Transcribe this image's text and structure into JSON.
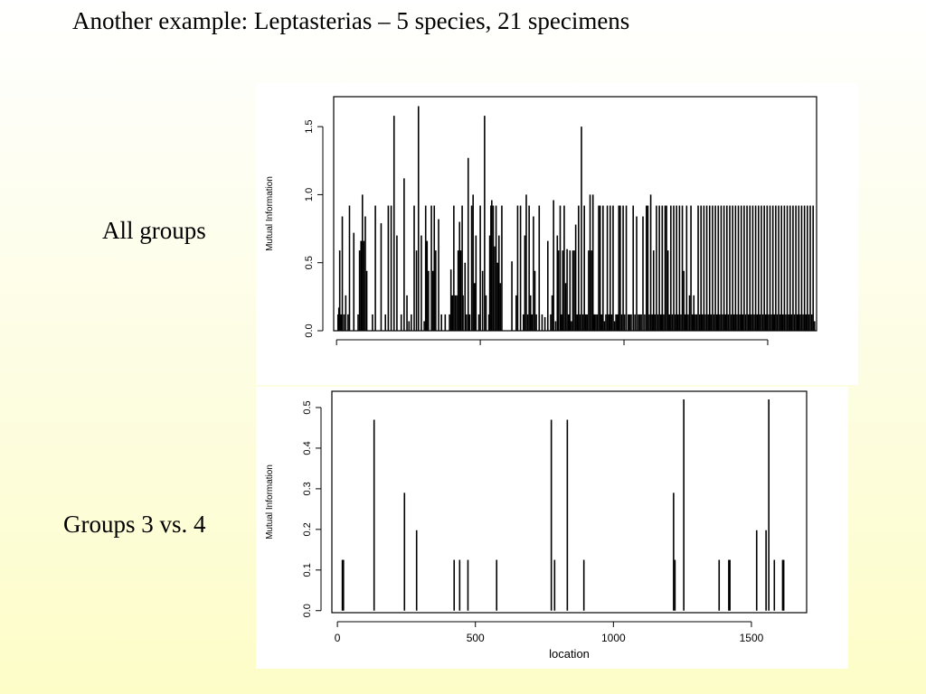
{
  "slide": {
    "title": "Another example: Leptasterias – 5 species, 21 specimens",
    "labels": {
      "all_groups": "All groups",
      "groups_3_vs_4": "Groups 3 vs. 4"
    }
  },
  "chart_data": [
    {
      "type": "bar",
      "subtype": "vertical-lines",
      "title": "",
      "xlabel": "",
      "ylabel": "Mutual Information",
      "xlim": [
        -10,
        1670
      ],
      "ylim": [
        0,
        1.72
      ],
      "yticks": [
        0.0,
        0.5,
        1.0,
        1.5
      ],
      "ytick_labels": [
        "0.0",
        "0.5",
        "1.0",
        "1.5"
      ],
      "xticks": [
        0,
        500,
        1000,
        1500
      ],
      "xtick_labels": [
        "",
        "",
        "",
        ""
      ],
      "color": "#000000",
      "bars": [
        [
          5,
          0.12
        ],
        [
          8,
          0.17
        ],
        [
          11,
          0.59
        ],
        [
          14,
          0.12
        ],
        [
          17,
          0.12
        ],
        [
          20,
          0.84
        ],
        [
          26,
          0.12
        ],
        [
          32,
          0.26
        ],
        [
          40,
          0.12
        ],
        [
          45,
          0.92
        ],
        [
          60,
          0.72
        ],
        [
          75,
          0.12
        ],
        [
          80,
          0.59
        ],
        [
          85,
          0.66
        ],
        [
          90,
          1.0
        ],
        [
          95,
          0.66
        ],
        [
          100,
          0.84
        ],
        [
          105,
          0.44
        ],
        [
          125,
          0.12
        ],
        [
          135,
          0.92
        ],
        [
          155,
          0.79
        ],
        [
          170,
          0.12
        ],
        [
          180,
          0.92
        ],
        [
          190,
          0.92
        ],
        [
          200,
          1.58
        ],
        [
          210,
          0.7
        ],
        [
          225,
          0.12
        ],
        [
          235,
          1.12
        ],
        [
          245,
          0.26
        ],
        [
          252,
          0.07
        ],
        [
          260,
          0.12
        ],
        [
          270,
          0.92
        ],
        [
          278,
          0.59
        ],
        [
          285,
          1.65
        ],
        [
          295,
          0.7
        ],
        [
          305,
          0.07
        ],
        [
          310,
          0.92
        ],
        [
          315,
          0.66
        ],
        [
          320,
          0.44
        ],
        [
          330,
          0.92
        ],
        [
          335,
          0.44
        ],
        [
          340,
          0.92
        ],
        [
          345,
          0.59
        ],
        [
          355,
          0.82
        ],
        [
          365,
          0.12
        ],
        [
          378,
          0.12
        ],
        [
          393,
          0.12
        ],
        [
          398,
          0.45
        ],
        [
          403,
          0.26
        ],
        [
          408,
          0.92
        ],
        [
          413,
          0.26
        ],
        [
          418,
          0.26
        ],
        [
          423,
          0.59
        ],
        [
          428,
          0.8
        ],
        [
          432,
          0.59
        ],
        [
          437,
          0.92
        ],
        [
          440,
          0.26
        ],
        [
          447,
          0.5
        ],
        [
          452,
          0.12
        ],
        [
          458,
          1.27
        ],
        [
          463,
          0.12
        ],
        [
          470,
          0.92
        ],
        [
          475,
          1.0
        ],
        [
          480,
          0.35
        ],
        [
          485,
          0.7
        ],
        [
          495,
          0.12
        ],
        [
          500,
          0.92
        ],
        [
          508,
          0.44
        ],
        [
          515,
          1.58
        ],
        [
          520,
          0.26
        ],
        [
          530,
          0.12
        ],
        [
          533,
          0.7
        ],
        [
          537,
          0.92
        ],
        [
          540,
          0.96
        ],
        [
          545,
          0.92
        ],
        [
          550,
          0.62
        ],
        [
          555,
          0.92
        ],
        [
          560,
          0.5
        ],
        [
          565,
          0.7
        ],
        [
          570,
          0.35
        ],
        [
          575,
          0.92
        ],
        [
          610,
          0.51
        ],
        [
          625,
          0.26
        ],
        [
          630,
          0.92
        ],
        [
          640,
          0.92
        ],
        [
          650,
          0.12
        ],
        [
          655,
          0.7
        ],
        [
          660,
          1.0
        ],
        [
          665,
          0.12
        ],
        [
          670,
          0.92
        ],
        [
          675,
          0.26
        ],
        [
          680,
          0.12
        ],
        [
          685,
          0.84
        ],
        [
          690,
          0.44
        ],
        [
          695,
          0.12
        ],
        [
          705,
          0.92
        ],
        [
          715,
          0.12
        ],
        [
          725,
          0.1
        ],
        [
          735,
          0.66
        ],
        [
          745,
          0.12
        ],
        [
          750,
          0.26
        ],
        [
          755,
          0.96
        ],
        [
          762,
          0.07
        ],
        [
          768,
          0.7
        ],
        [
          772,
          0.59
        ],
        [
          778,
          0.92
        ],
        [
          782,
          0.12
        ],
        [
          787,
          0.59
        ],
        [
          792,
          0.92
        ],
        [
          797,
          0.35
        ],
        [
          802,
          0.6
        ],
        [
          807,
          0.12
        ],
        [
          812,
          0.59
        ],
        [
          817,
          0.07
        ],
        [
          822,
          0.59
        ],
        [
          827,
          0.59
        ],
        [
          832,
          0.78
        ],
        [
          837,
          0.12
        ],
        [
          842,
          0.92
        ],
        [
          847,
          0.12
        ],
        [
          852,
          1.5
        ],
        [
          857,
          0.12
        ],
        [
          862,
          0.92
        ],
        [
          867,
          0.12
        ],
        [
          872,
          0.12
        ],
        [
          877,
          0.59
        ],
        [
          882,
          1.0
        ],
        [
          887,
          0.59
        ],
        [
          892,
          1.0
        ],
        [
          897,
          0.12
        ],
        [
          902,
          0.12
        ],
        [
          907,
          0.12
        ],
        [
          912,
          0.92
        ],
        [
          917,
          0.92
        ],
        [
          922,
          0.12
        ],
        [
          927,
          0.92
        ],
        [
          932,
          0.07
        ],
        [
          937,
          0.12
        ],
        [
          942,
          0.92
        ],
        [
          947,
          0.12
        ],
        [
          952,
          0.92
        ],
        [
          957,
          0.12
        ],
        [
          962,
          0.92
        ],
        [
          967,
          0.07
        ],
        [
          972,
          0.12
        ],
        [
          977,
          0.12
        ],
        [
          982,
          0.92
        ],
        [
          987,
          0.92
        ],
        [
          992,
          0.12
        ],
        [
          997,
          0.92
        ],
        [
          1002,
          0.12
        ],
        [
          1008,
          0.92
        ],
        [
          1015,
          0.12
        ],
        [
          1020,
          0.12
        ],
        [
          1025,
          0.12
        ],
        [
          1032,
          0.92
        ],
        [
          1038,
          0.12
        ],
        [
          1044,
          0.84
        ],
        [
          1050,
          0.12
        ],
        [
          1055,
          0.12
        ],
        [
          1060,
          0.12
        ],
        [
          1066,
          0.84
        ],
        [
          1072,
          0.12
        ],
        [
          1078,
          0.92
        ],
        [
          1083,
          0.92
        ],
        [
          1088,
          0.12
        ],
        [
          1093,
          1.0
        ],
        [
          1098,
          0.12
        ],
        [
          1103,
          0.59
        ],
        [
          1108,
          0.12
        ],
        [
          1113,
          0.92
        ],
        [
          1118,
          0.12
        ],
        [
          1123,
          0.92
        ],
        [
          1128,
          0.12
        ],
        [
          1133,
          0.92
        ],
        [
          1138,
          0.12
        ],
        [
          1143,
          0.92
        ],
        [
          1148,
          0.92
        ],
        [
          1153,
          0.59
        ],
        [
          1158,
          0.12
        ],
        [
          1163,
          0.92
        ],
        [
          1168,
          0.12
        ],
        [
          1173,
          0.92
        ],
        [
          1178,
          0.12
        ],
        [
          1183,
          0.92
        ],
        [
          1188,
          0.12
        ],
        [
          1193,
          0.92
        ],
        [
          1198,
          0.12
        ],
        [
          1203,
          0.92
        ],
        [
          1208,
          0.44
        ],
        [
          1213,
          0.12
        ],
        [
          1218,
          0.92
        ],
        [
          1223,
          0.12
        ],
        [
          1228,
          0.26
        ],
        [
          1233,
          0.92
        ],
        [
          1238,
          0.12
        ],
        [
          1243,
          0.26
        ],
        [
          1248,
          0.12
        ],
        [
          1253,
          0.12
        ],
        [
          1258,
          0.92
        ],
        [
          1263,
          0.12
        ],
        [
          1268,
          0.92
        ],
        [
          1273,
          0.12
        ],
        [
          1278,
          0.92
        ],
        [
          1283,
          0.12
        ],
        [
          1288,
          0.92
        ],
        [
          1293,
          0.12
        ],
        [
          1298,
          0.92
        ],
        [
          1303,
          0.12
        ],
        [
          1308,
          0.92
        ],
        [
          1313,
          0.12
        ],
        [
          1318,
          0.92
        ],
        [
          1323,
          0.12
        ],
        [
          1328,
          0.92
        ],
        [
          1333,
          0.12
        ],
        [
          1338,
          0.92
        ],
        [
          1343,
          0.12
        ],
        [
          1348,
          0.92
        ],
        [
          1353,
          0.12
        ],
        [
          1358,
          0.92
        ],
        [
          1363,
          0.12
        ],
        [
          1368,
          0.92
        ],
        [
          1373,
          0.12
        ],
        [
          1378,
          0.92
        ],
        [
          1383,
          0.12
        ],
        [
          1388,
          0.92
        ],
        [
          1393,
          0.12
        ],
        [
          1398,
          0.92
        ],
        [
          1403,
          0.12
        ],
        [
          1408,
          0.92
        ],
        [
          1413,
          0.12
        ],
        [
          1418,
          0.92
        ],
        [
          1423,
          0.12
        ],
        [
          1428,
          0.92
        ],
        [
          1433,
          0.12
        ],
        [
          1438,
          0.92
        ],
        [
          1443,
          0.12
        ],
        [
          1448,
          0.92
        ],
        [
          1453,
          0.12
        ],
        [
          1458,
          0.92
        ],
        [
          1463,
          0.12
        ],
        [
          1468,
          0.92
        ],
        [
          1473,
          0.12
        ],
        [
          1478,
          0.92
        ],
        [
          1483,
          0.12
        ],
        [
          1488,
          0.92
        ],
        [
          1493,
          0.12
        ],
        [
          1498,
          0.92
        ],
        [
          1503,
          0.12
        ],
        [
          1508,
          0.92
        ],
        [
          1513,
          0.12
        ],
        [
          1518,
          0.92
        ],
        [
          1523,
          0.12
        ],
        [
          1528,
          0.92
        ],
        [
          1533,
          0.12
        ],
        [
          1538,
          0.92
        ],
        [
          1543,
          0.12
        ],
        [
          1548,
          0.92
        ],
        [
          1553,
          0.12
        ],
        [
          1558,
          0.92
        ],
        [
          1563,
          0.12
        ],
        [
          1568,
          0.92
        ],
        [
          1573,
          0.12
        ],
        [
          1578,
          0.92
        ],
        [
          1583,
          0.12
        ],
        [
          1588,
          0.92
        ],
        [
          1593,
          0.12
        ],
        [
          1598,
          0.92
        ],
        [
          1603,
          0.12
        ],
        [
          1608,
          0.92
        ],
        [
          1613,
          0.12
        ],
        [
          1618,
          0.92
        ],
        [
          1623,
          0.12
        ],
        [
          1628,
          0.92
        ],
        [
          1633,
          0.12
        ],
        [
          1638,
          0.92
        ],
        [
          1643,
          0.12
        ],
        [
          1648,
          0.92
        ],
        [
          1653,
          0.12
        ],
        [
          1658,
          0.92
        ],
        [
          1663,
          0.07
        ]
      ]
    },
    {
      "type": "bar",
      "subtype": "vertical-lines",
      "title": "",
      "xlabel": "location",
      "ylabel": "Mutual Information",
      "xlim": [
        -20,
        1700
      ],
      "ylim": [
        -0.005,
        0.54
      ],
      "yticks": [
        0.0,
        0.1,
        0.2,
        0.3,
        0.4,
        0.5
      ],
      "ytick_labels": [
        "0.0",
        "0.1",
        "0.2",
        "0.3",
        "0.4",
        "0.5"
      ],
      "xticks": [
        0,
        500,
        1000,
        1500
      ],
      "xtick_labels": [
        "0",
        "500",
        "1000",
        "1500"
      ],
      "color": "#000000",
      "bars": [
        [
          18,
          0.125
        ],
        [
          22,
          0.125
        ],
        [
          133,
          0.47
        ],
        [
          243,
          0.29
        ],
        [
          287,
          0.198
        ],
        [
          423,
          0.125
        ],
        [
          443,
          0.125
        ],
        [
          473,
          0.125
        ],
        [
          577,
          0.125
        ],
        [
          775,
          0.47
        ],
        [
          787,
          0.125
        ],
        [
          833,
          0.47
        ],
        [
          893,
          0.125
        ],
        [
          1218,
          0.29
        ],
        [
          1223,
          0.125
        ],
        [
          1255,
          0.52
        ],
        [
          1383,
          0.125
        ],
        [
          1418,
          0.125
        ],
        [
          1422,
          0.125
        ],
        [
          1519,
          0.198
        ],
        [
          1553,
          0.198
        ],
        [
          1563,
          0.52
        ],
        [
          1583,
          0.125
        ],
        [
          1613,
          0.125
        ],
        [
          1617,
          0.125
        ]
      ]
    }
  ]
}
